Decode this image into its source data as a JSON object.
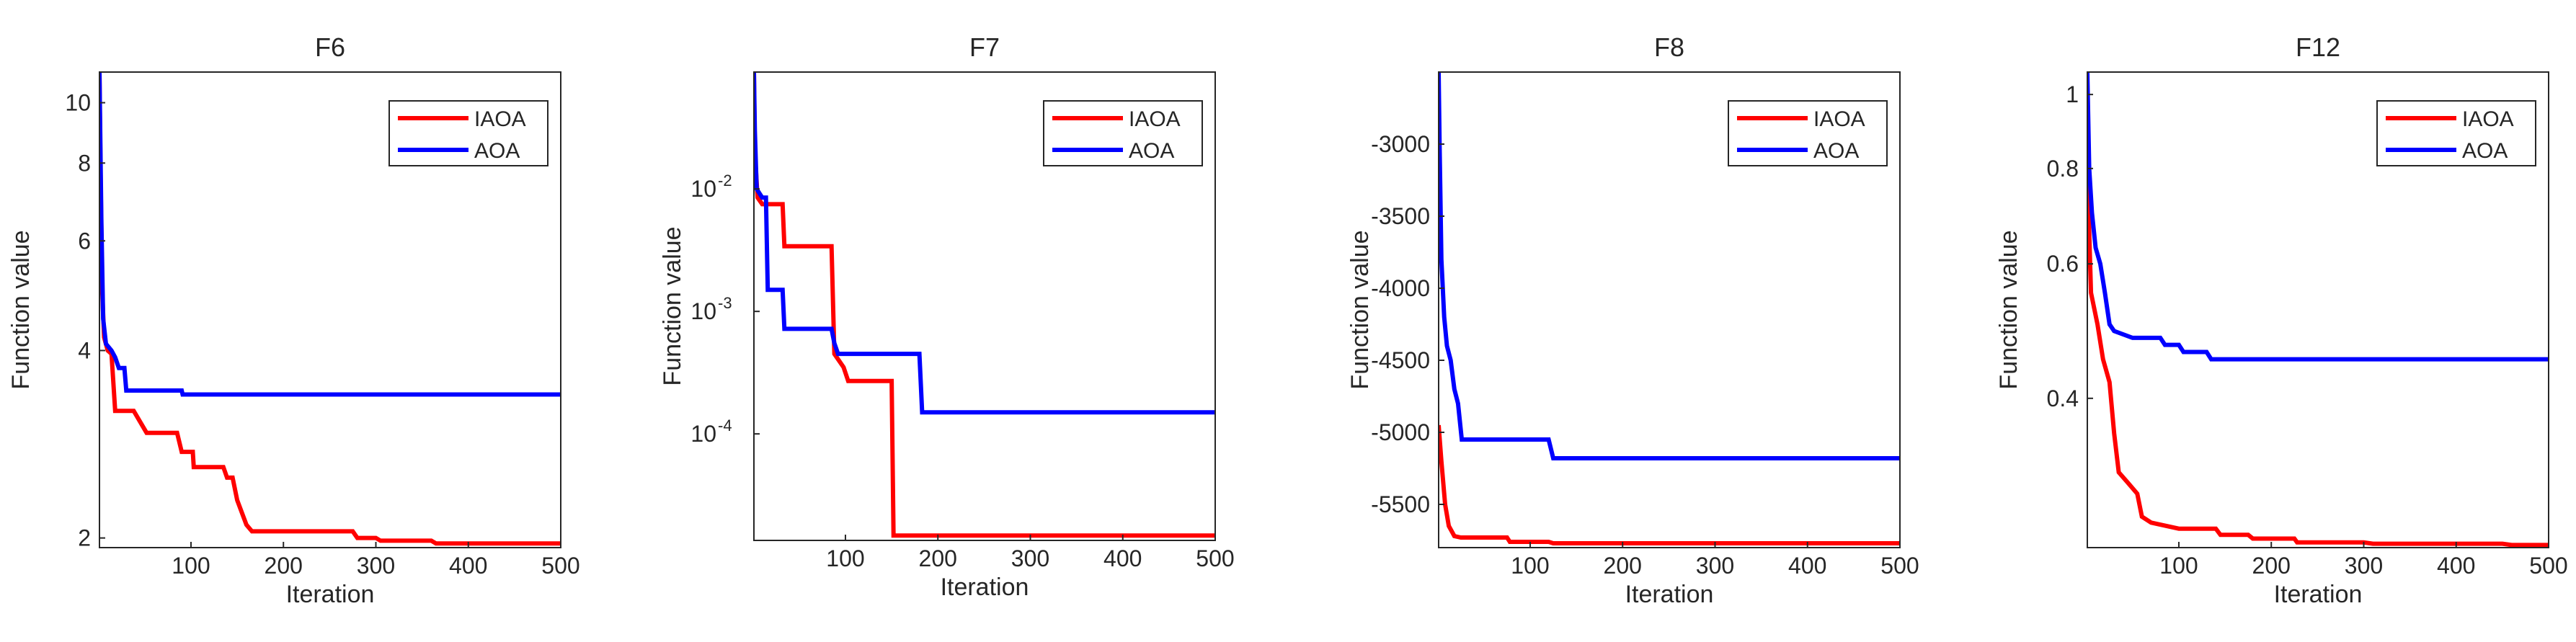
{
  "colors": {
    "iaoa": "#ff0000",
    "aoa": "#0000ff",
    "axis": "#262626"
  },
  "chart_data": [
    {
      "type": "line",
      "title": "F6",
      "xlabel": "Iteration",
      "ylabel": "Function value",
      "yscale": "log",
      "xlim": [
        1,
        500
      ],
      "ylim": [
        1.93,
        11.2
      ],
      "xticks": [
        100,
        200,
        300,
        400,
        500
      ],
      "xtick_labels": [
        "100",
        "200",
        "300",
        "400",
        "500"
      ],
      "yticks": [
        2,
        4,
        6,
        8,
        10
      ],
      "ytick_labels": [
        "2",
        "4",
        "6",
        "8",
        "10"
      ],
      "legend": "top-right",
      "series": [
        {
          "name": "IAOA",
          "color": "#ff0000",
          "points": [
            [
              1,
              11.2
            ],
            [
              2,
              8
            ],
            [
              4,
              5
            ],
            [
              6,
              4.2
            ],
            [
              10,
              4
            ],
            [
              14,
              3.95
            ],
            [
              18,
              3.2
            ],
            [
              38,
              3.2
            ],
            [
              52,
              2.95
            ],
            [
              85,
              2.95
            ],
            [
              90,
              2.75
            ],
            [
              102,
              2.75
            ],
            [
              103,
              2.6
            ],
            [
              135,
              2.6
            ],
            [
              139,
              2.5
            ],
            [
              145,
              2.5
            ],
            [
              150,
              2.3
            ],
            [
              160,
              2.1
            ],
            [
              166,
              2.05
            ],
            [
              275,
              2.05
            ],
            [
              280,
              2.0
            ],
            [
              300,
              2.0
            ],
            [
              305,
              1.98
            ],
            [
              360,
              1.98
            ],
            [
              365,
              1.96
            ],
            [
              500,
              1.96
            ]
          ]
        },
        {
          "name": "AOA",
          "color": "#0000ff",
          "points": [
            [
              1,
              11.2
            ],
            [
              3,
              6.5
            ],
            [
              5,
              4.5
            ],
            [
              8,
              4.1
            ],
            [
              14,
              4.0
            ],
            [
              18,
              3.9
            ],
            [
              22,
              3.75
            ],
            [
              28,
              3.75
            ],
            [
              30,
              3.45
            ],
            [
              90,
              3.45
            ],
            [
              91,
              3.4
            ],
            [
              500,
              3.4
            ]
          ]
        }
      ]
    },
    {
      "type": "line",
      "title": "F7",
      "xlabel": "Iteration",
      "ylabel": "Function value",
      "yscale": "log",
      "xlim": [
        1,
        500
      ],
      "ylim": [
        1.35e-05,
        0.09
      ],
      "xticks": [
        100,
        200,
        300,
        400,
        500
      ],
      "xtick_labels": [
        "100",
        "200",
        "300",
        "400",
        "500"
      ],
      "yticks": [
        0.0001,
        0.001,
        0.01
      ],
      "ytick_labels": [
        "10",
        "10",
        "10"
      ],
      "ytick_exponents": [
        "-4",
        "-3",
        "-2"
      ],
      "legend": "top-right",
      "series": [
        {
          "name": "IAOA",
          "color": "#ff0000",
          "points": [
            [
              1,
              0.09
            ],
            [
              2,
              0.02
            ],
            [
              5,
              0.0085
            ],
            [
              10,
              0.0075
            ],
            [
              32,
              0.0075
            ],
            [
              34,
              0.0034
            ],
            [
              85,
              0.0034
            ],
            [
              88,
              0.00045
            ],
            [
              98,
              0.00035
            ],
            [
              103,
              0.00027
            ],
            [
              150,
              0.00027
            ],
            [
              152,
              1.48e-05
            ],
            [
              500,
              1.48e-05
            ]
          ]
        },
        {
          "name": "AOA",
          "color": "#0000ff",
          "points": [
            [
              1,
              0.09
            ],
            [
              2,
              0.03
            ],
            [
              4,
              0.01
            ],
            [
              10,
              0.0085
            ],
            [
              14,
              0.0085
            ],
            [
              16,
              0.0015
            ],
            [
              32,
              0.0015
            ],
            [
              34,
              0.00072
            ],
            [
              85,
              0.00072
            ],
            [
              88,
              0.00055
            ],
            [
              92,
              0.00045
            ],
            [
              180,
              0.00045
            ],
            [
              183,
              0.00015
            ],
            [
              500,
              0.00015
            ]
          ]
        }
      ]
    },
    {
      "type": "line",
      "title": "F8",
      "xlabel": "Iteration",
      "ylabel": "Function value",
      "yscale": "linear",
      "xlim": [
        1,
        500
      ],
      "ylim": [
        -5800,
        -2500
      ],
      "xticks": [
        100,
        200,
        300,
        400,
        500
      ],
      "xtick_labels": [
        "100",
        "200",
        "300",
        "400",
        "500"
      ],
      "yticks": [
        -5500,
        -5000,
        -4500,
        -4000,
        -3500,
        -3000
      ],
      "ytick_labels": [
        "-5500",
        "-5000",
        "-4500",
        "-4000",
        "-3500",
        "-3000"
      ],
      "legend": "top-right",
      "series": [
        {
          "name": "IAOA",
          "color": "#ff0000",
          "points": [
            [
              1,
              -4950
            ],
            [
              4,
              -5200
            ],
            [
              8,
              -5500
            ],
            [
              12,
              -5650
            ],
            [
              18,
              -5720
            ],
            [
              25,
              -5730
            ],
            [
              75,
              -5730
            ],
            [
              78,
              -5760
            ],
            [
              120,
              -5760
            ],
            [
              125,
              -5770
            ],
            [
              500,
              -5770
            ]
          ]
        },
        {
          "name": "AOA",
          "color": "#0000ff",
          "points": [
            [
              1,
              -2500
            ],
            [
              2,
              -3000
            ],
            [
              4,
              -3800
            ],
            [
              7,
              -4200
            ],
            [
              10,
              -4400
            ],
            [
              14,
              -4500
            ],
            [
              18,
              -4700
            ],
            [
              22,
              -4800
            ],
            [
              26,
              -5050
            ],
            [
              120,
              -5050
            ],
            [
              125,
              -5180
            ],
            [
              500,
              -5180
            ]
          ]
        }
      ]
    },
    {
      "type": "line",
      "title": "F12",
      "xlabel": "Iteration",
      "ylabel": "Function value",
      "yscale": "log",
      "xlim": [
        1,
        500
      ],
      "ylim": [
        0.255,
        1.07
      ],
      "xticks": [
        100,
        200,
        300,
        400,
        500
      ],
      "xtick_labels": [
        "100",
        "200",
        "300",
        "400",
        "500"
      ],
      "yticks": [
        0.4,
        0.6,
        0.8,
        1
      ],
      "ytick_labels": [
        "0.4",
        "0.6",
        "0.8",
        "1"
      ],
      "legend": "top-right",
      "series": [
        {
          "name": "IAOA",
          "color": "#ff0000",
          "points": [
            [
              1,
              0.8
            ],
            [
              5,
              0.55
            ],
            [
              12,
              0.5
            ],
            [
              18,
              0.45
            ],
            [
              25,
              0.42
            ],
            [
              30,
              0.36
            ],
            [
              35,
              0.32
            ],
            [
              45,
              0.31
            ],
            [
              55,
              0.3
            ],
            [
              60,
              0.28
            ],
            [
              70,
              0.275
            ],
            [
              100,
              0.27
            ],
            [
              140,
              0.27
            ],
            [
              145,
              0.265
            ],
            [
              175,
              0.265
            ],
            [
              180,
              0.262
            ],
            [
              225,
              0.262
            ],
            [
              228,
              0.259
            ],
            [
              300,
              0.259
            ],
            [
              310,
              0.258
            ],
            [
              400,
              0.258
            ],
            [
              450,
              0.258
            ],
            [
              460,
              0.257
            ],
            [
              500,
              0.257
            ]
          ]
        },
        {
          "name": "AOA",
          "color": "#0000ff",
          "points": [
            [
              1,
              1.07
            ],
            [
              3,
              0.8
            ],
            [
              6,
              0.7
            ],
            [
              10,
              0.63
            ],
            [
              15,
              0.6
            ],
            [
              20,
              0.55
            ],
            [
              25,
              0.5
            ],
            [
              30,
              0.49
            ],
            [
              50,
              0.48
            ],
            [
              80,
              0.48
            ],
            [
              85,
              0.47
            ],
            [
              100,
              0.47
            ],
            [
              105,
              0.46
            ],
            [
              130,
              0.46
            ],
            [
              135,
              0.45
            ],
            [
              500,
              0.45
            ]
          ]
        }
      ]
    }
  ]
}
